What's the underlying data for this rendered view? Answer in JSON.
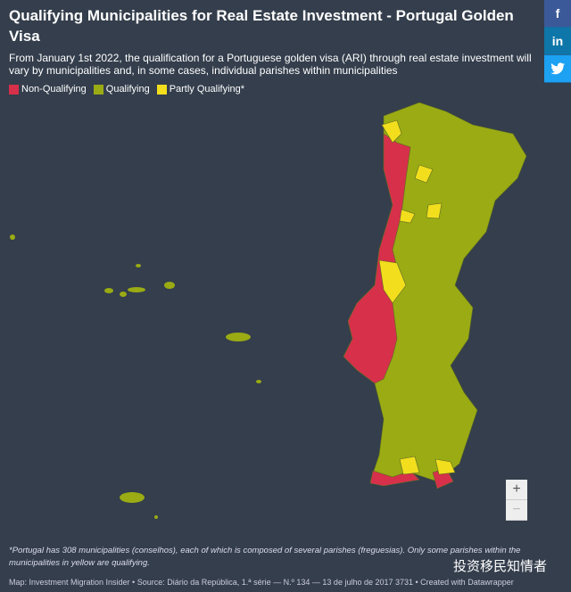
{
  "header": {
    "title": "Qualifying Municipalities for Real Estate Investment - Portugal Golden Visa",
    "subtitle": "From January 1st 2022, the qualification for a Portuguese golden visa (ARI) through real estate investment will vary by municipalities and, in some cases, individual parishes within municipalities"
  },
  "legend": {
    "items": [
      {
        "label": "Non-Qualifying",
        "color": "#d7304a"
      },
      {
        "label": "Qualifying",
        "color": "#9aab14"
      },
      {
        "label": "Partly Qualifying*",
        "color": "#f2de1d"
      }
    ]
  },
  "share": {
    "buttons": [
      "f",
      "in"
    ]
  },
  "zoom": {
    "buttons": [
      "+",
      "−"
    ]
  },
  "footnote": "*Portugal has 308 municipalities (conselhos), each of which is composed of several parishes (freguesias). Only some parishes within the municipalities in yellow are qualifying.",
  "source": "Map: Investment Migration Insider • Source: Diário da República, 1.ª série — N.º 134 — 13 de julho de 2017 3731 • Created with Datawrapper",
  "watermark": "投资移民知情者"
}
